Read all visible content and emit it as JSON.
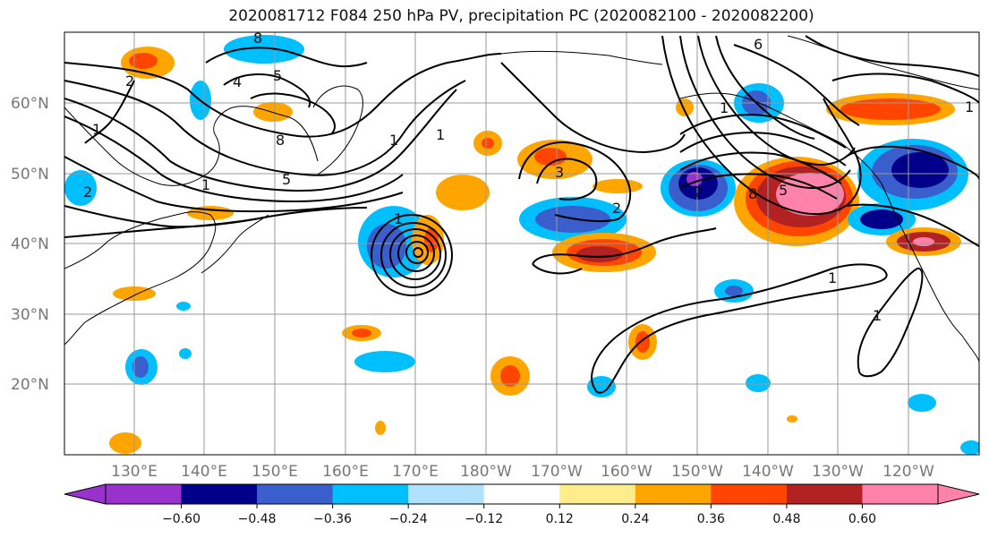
{
  "title": "2020081712 F084 250 hPa PV, precipitation PC (2020082100 - 2020082200)",
  "lat_labels": [
    "60°N",
    "50°N",
    "40°N",
    "30°N",
    "20°N"
  ],
  "lon_labels": [
    "130°E",
    "140°E",
    "150°E",
    "160°E",
    "170°E",
    "180°W",
    "170°W",
    "160°W",
    "150°W",
    "140°W",
    "130°W",
    "120°W"
  ],
  "colorbar": {
    "colors": [
      "#9932cc",
      "#00008b",
      "#3a5fcd",
      "#00bfff",
      "#b0e2ff",
      "#ffffff",
      "#ffec8b",
      "#ffa500",
      "#ff4500",
      "#b22222",
      "#ff82ab"
    ],
    "tick_labels": [
      "−0.60",
      "−0.48",
      "−0.36",
      "−0.24",
      "−0.12",
      "0.12",
      "0.24",
      "0.36",
      "0.48",
      "0.60"
    ]
  },
  "pv_contour_labels": [
    "8",
    "4",
    "5",
    "1",
    "2",
    "1",
    "8",
    "5",
    "1",
    "1",
    "3",
    "2",
    "1",
    "8",
    "5",
    "1",
    "1",
    "1",
    "6",
    "1",
    "2",
    "2"
  ]
}
